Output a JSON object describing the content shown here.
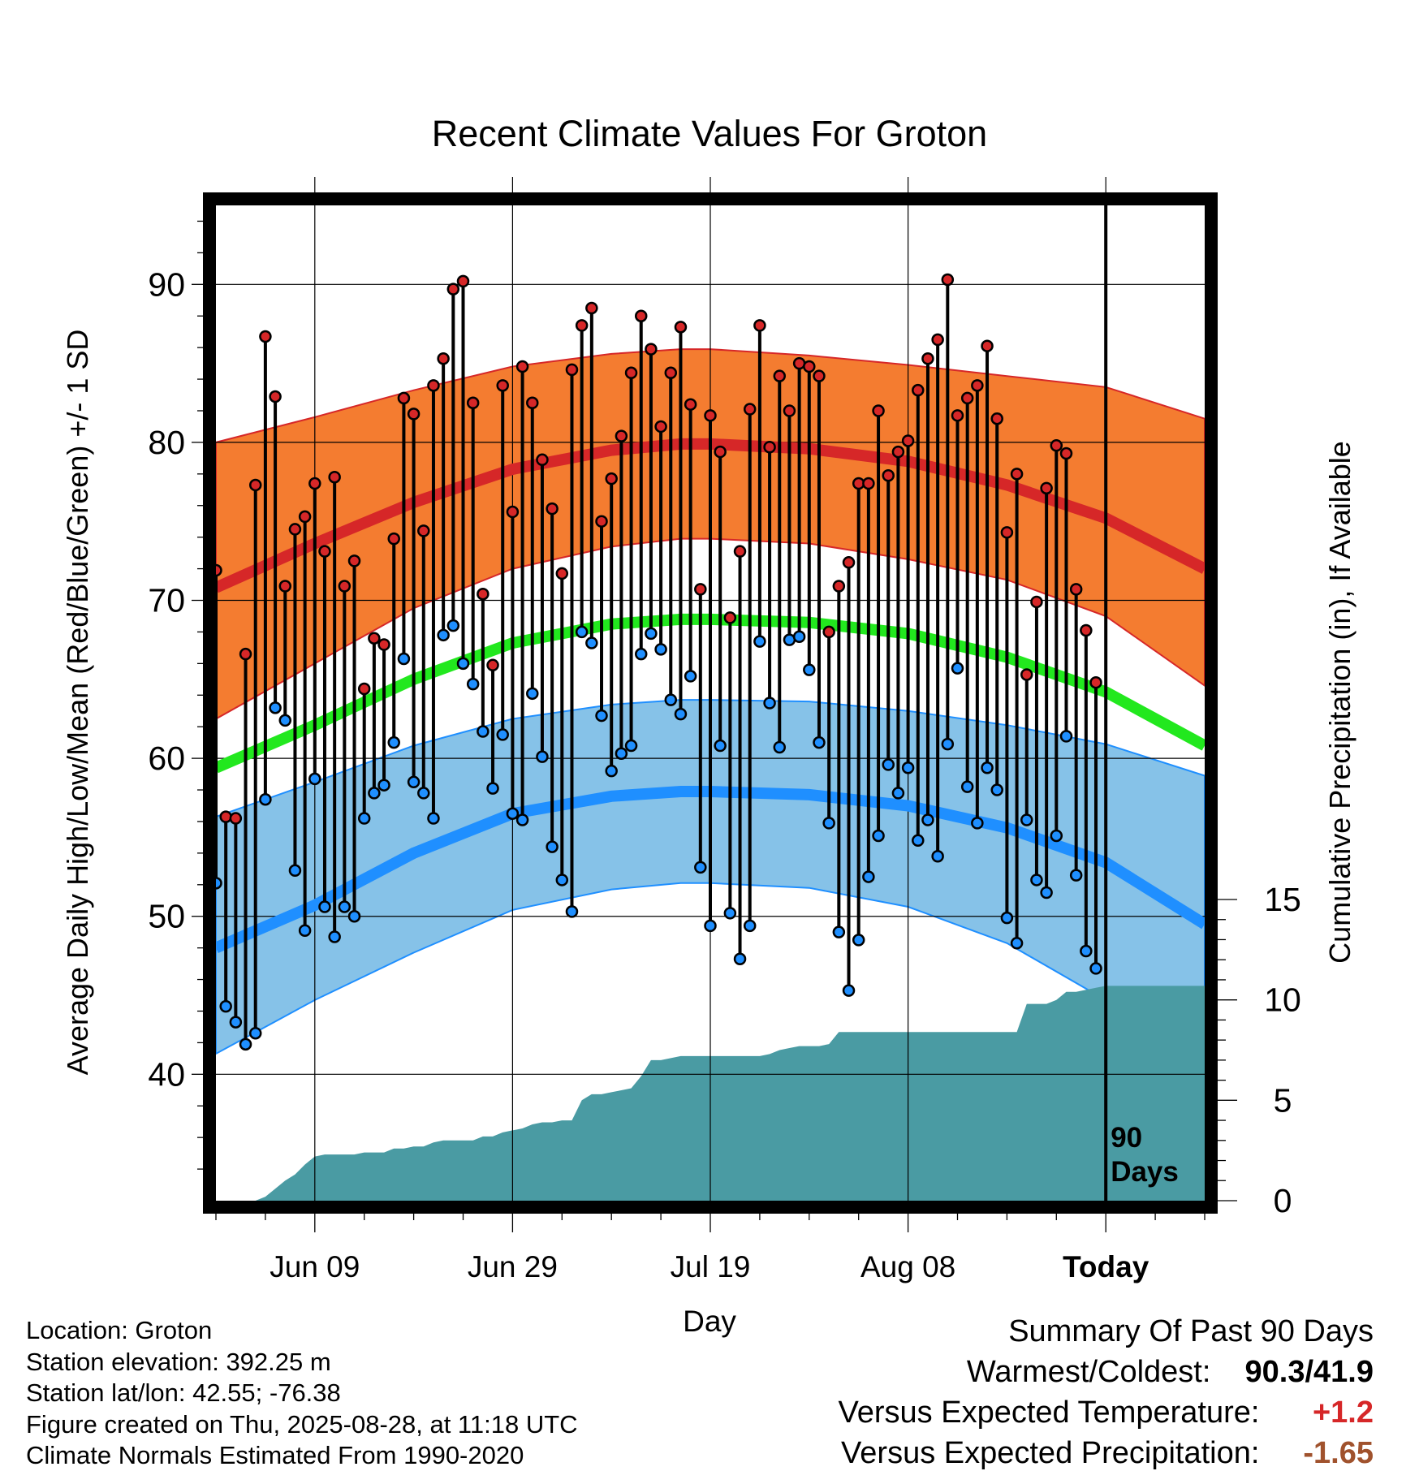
{
  "title": "Recent Climate Values For Groton",
  "colors": {
    "high": "#d62728",
    "low": "#1f8fff",
    "mean": "#22e81e",
    "high_band": "#f47c30",
    "low_band": "#86c2e8",
    "precip": "#4a9ba3",
    "positive": "#d62728",
    "negative": "#a0522d"
  },
  "chart_data": {
    "type": "line",
    "title": "Recent Climate Values For Groton",
    "xlabel": "Day",
    "ylabel": "Average Daily High/Low/Mean (Red/Blue/Green) +/- 1 SD",
    "y2label": "Cumulative Precipitation (in), If Available",
    "x_tick_labels": [
      "Jun 09",
      "Jun 29",
      "Jul 19",
      "Aug 08",
      "Today"
    ],
    "x_tick_days": [
      10,
      30,
      50,
      70,
      90
    ],
    "xlim": [
      0,
      100
    ],
    "ylim": [
      32,
      95
    ],
    "y_ticks": [
      40,
      50,
      60,
      70,
      80,
      90
    ],
    "y2lim": [
      0,
      15
    ],
    "y2_ticks": [
      0,
      5,
      10,
      15
    ],
    "today_label": "90\nDays",
    "grid": true,
    "normals": {
      "day": [
        0,
        10,
        20,
        30,
        40,
        47,
        50,
        60,
        70,
        80,
        90,
        100
      ],
      "high_mean": [
        70.8,
        73.6,
        76.2,
        78.3,
        79.5,
        79.9,
        79.9,
        79.6,
        78.8,
        77.3,
        75.2,
        72.0
      ],
      "high_sd_upper": [
        80.0,
        81.6,
        83.3,
        84.8,
        85.6,
        85.9,
        85.9,
        85.5,
        84.9,
        84.2,
        83.5,
        81.5
      ],
      "high_sd_lower": [
        62.5,
        66.0,
        69.5,
        72.0,
        73.4,
        73.9,
        73.9,
        73.6,
        72.6,
        71.3,
        69.0,
        64.6
      ],
      "low_mean": [
        48.0,
        50.7,
        54.0,
        56.5,
        57.6,
        57.9,
        57.9,
        57.7,
        57.0,
        55.6,
        53.4,
        49.5
      ],
      "low_sd_upper": [
        56.3,
        58.5,
        60.8,
        62.5,
        63.4,
        63.7,
        63.7,
        63.6,
        63.0,
        62.1,
        60.9,
        58.9
      ],
      "low_sd_lower": [
        41.3,
        44.7,
        47.7,
        50.4,
        51.7,
        52.1,
        52.1,
        51.8,
        50.6,
        48.3,
        44.7,
        40.3
      ],
      "mean": [
        59.4,
        62.1,
        65.0,
        67.3,
        68.5,
        68.8,
        68.8,
        68.6,
        67.9,
        66.4,
        64.2,
        60.8
      ]
    },
    "daily_highs": [
      71.9,
      56.3,
      56.2,
      66.6,
      77.3,
      86.7,
      82.9,
      70.9,
      74.5,
      75.3,
      77.4,
      73.1,
      77.8,
      70.9,
      72.5,
      64.4,
      67.6,
      67.2,
      73.9,
      82.8,
      81.8,
      74.4,
      83.6,
      85.3,
      89.7,
      90.2,
      82.5,
      70.4,
      65.9,
      83.6,
      75.6,
      84.8,
      82.5,
      78.9,
      75.8,
      71.7,
      84.6,
      87.4,
      88.5,
      75.0,
      77.7,
      80.4,
      84.4,
      88.0,
      85.9,
      81.0,
      84.4,
      87.3,
      82.4,
      70.7,
      81.7,
      79.4,
      68.9,
      73.1,
      82.1,
      87.4,
      79.7,
      84.2,
      82.0,
      85.0,
      84.8,
      84.2,
      68.0,
      70.9,
      72.4,
      77.4,
      77.4,
      82.0,
      77.9,
      79.4,
      80.1,
      83.3,
      85.3,
      86.5,
      90.3,
      81.7,
      82.8,
      83.6,
      86.1,
      81.5,
      74.3,
      78.0,
      65.3,
      69.9,
      77.1,
      79.8,
      79.3,
      70.7,
      68.1,
      64.8
    ],
    "daily_lows": [
      52.1,
      44.3,
      43.3,
      41.9,
      42.6,
      57.4,
      63.2,
      62.4,
      52.9,
      49.1,
      58.7,
      50.6,
      48.7,
      50.6,
      50.0,
      56.2,
      57.8,
      58.3,
      61.0,
      66.3,
      58.5,
      57.8,
      56.2,
      67.8,
      68.4,
      66.0,
      64.7,
      61.7,
      58.1,
      61.5,
      56.5,
      56.1,
      64.1,
      60.1,
      54.4,
      52.3,
      50.3,
      68.0,
      67.3,
      62.7,
      59.2,
      60.3,
      60.8,
      66.6,
      67.9,
      66.9,
      63.7,
      62.8,
      65.2,
      53.1,
      49.4,
      60.8,
      50.2,
      47.3,
      49.4,
      67.4,
      63.5,
      60.7,
      67.5,
      67.7,
      65.6,
      61.0,
      55.9,
      49.0,
      45.3,
      48.5,
      52.5,
      55.1,
      59.6,
      57.8,
      59.4,
      54.8,
      56.1,
      53.8,
      60.9,
      65.7,
      58.2,
      55.9,
      59.4,
      58.0,
      49.9,
      48.3,
      56.1,
      52.3,
      51.5,
      55.1,
      61.4,
      52.6,
      47.8,
      46.7
    ],
    "cumulative_precip": [
      0,
      0,
      0,
      0,
      0,
      0.2,
      0.6,
      1.0,
      1.3,
      1.8,
      2.2,
      2.3,
      2.3,
      2.3,
      2.3,
      2.4,
      2.4,
      2.4,
      2.6,
      2.6,
      2.7,
      2.7,
      2.9,
      3.0,
      3.0,
      3.0,
      3.0,
      3.2,
      3.2,
      3.4,
      3.5,
      3.6,
      3.8,
      3.9,
      3.9,
      4.0,
      4.0,
      5.0,
      5.3,
      5.3,
      5.4,
      5.5,
      5.6,
      6.2,
      7.0,
      7.0,
      7.1,
      7.2,
      7.2,
      7.2,
      7.2,
      7.2,
      7.2,
      7.2,
      7.2,
      7.2,
      7.3,
      7.5,
      7.6,
      7.7,
      7.7,
      7.7,
      7.8,
      8.4,
      8.4,
      8.4,
      8.4,
      8.4,
      8.4,
      8.4,
      8.4,
      8.4,
      8.4,
      8.4,
      8.4,
      8.4,
      8.4,
      8.4,
      8.4,
      8.4,
      8.4,
      8.4,
      9.8,
      9.8,
      9.8,
      10.0,
      10.4,
      10.4,
      10.5,
      10.6,
      10.7,
      10.7,
      10.7,
      10.7,
      10.7,
      10.7,
      10.7,
      10.7,
      10.7,
      10.7,
      10.7
    ],
    "precip_days": [
      0,
      1,
      2,
      3,
      4,
      5,
      6,
      7,
      8,
      9,
      10,
      11,
      12,
      13,
      14,
      15,
      16,
      17,
      18,
      19,
      20,
      21,
      22,
      23,
      24,
      25,
      26,
      27,
      28,
      29,
      30,
      31,
      32,
      33,
      34,
      35,
      36,
      37,
      38,
      39,
      40,
      41,
      42,
      43,
      44,
      45,
      46,
      47,
      48,
      49,
      50,
      51,
      52,
      53,
      54,
      55,
      56,
      57,
      58,
      59,
      60,
      61,
      62,
      63,
      64,
      65,
      66,
      67,
      68,
      69,
      70,
      71,
      72,
      73,
      74,
      75,
      76,
      77,
      78,
      79,
      80,
      81,
      82,
      83,
      84,
      85,
      86,
      87,
      88,
      89,
      90,
      91,
      92,
      93,
      94,
      95,
      96,
      97,
      98,
      99,
      100
    ]
  },
  "footer": {
    "location": "Location: Groton",
    "elevation": "Station elevation: 392.25 m",
    "latlon": "Station lat/lon: 42.55; -76.38",
    "created": "Figure created on Thu, 2025-08-28, at 11:18 UTC",
    "normals": "Climate Normals Estimated From 1990-2020"
  },
  "summary": {
    "heading": "Summary Of Past 90 Days",
    "warm_cold_label": "Warmest/Coldest:",
    "warm_cold_value": "90.3/41.9",
    "temp_label": "Versus Expected Temperature:",
    "temp_value": "+1.2",
    "precip_label": "Versus Expected Precipitation:",
    "precip_value": "-1.65"
  }
}
